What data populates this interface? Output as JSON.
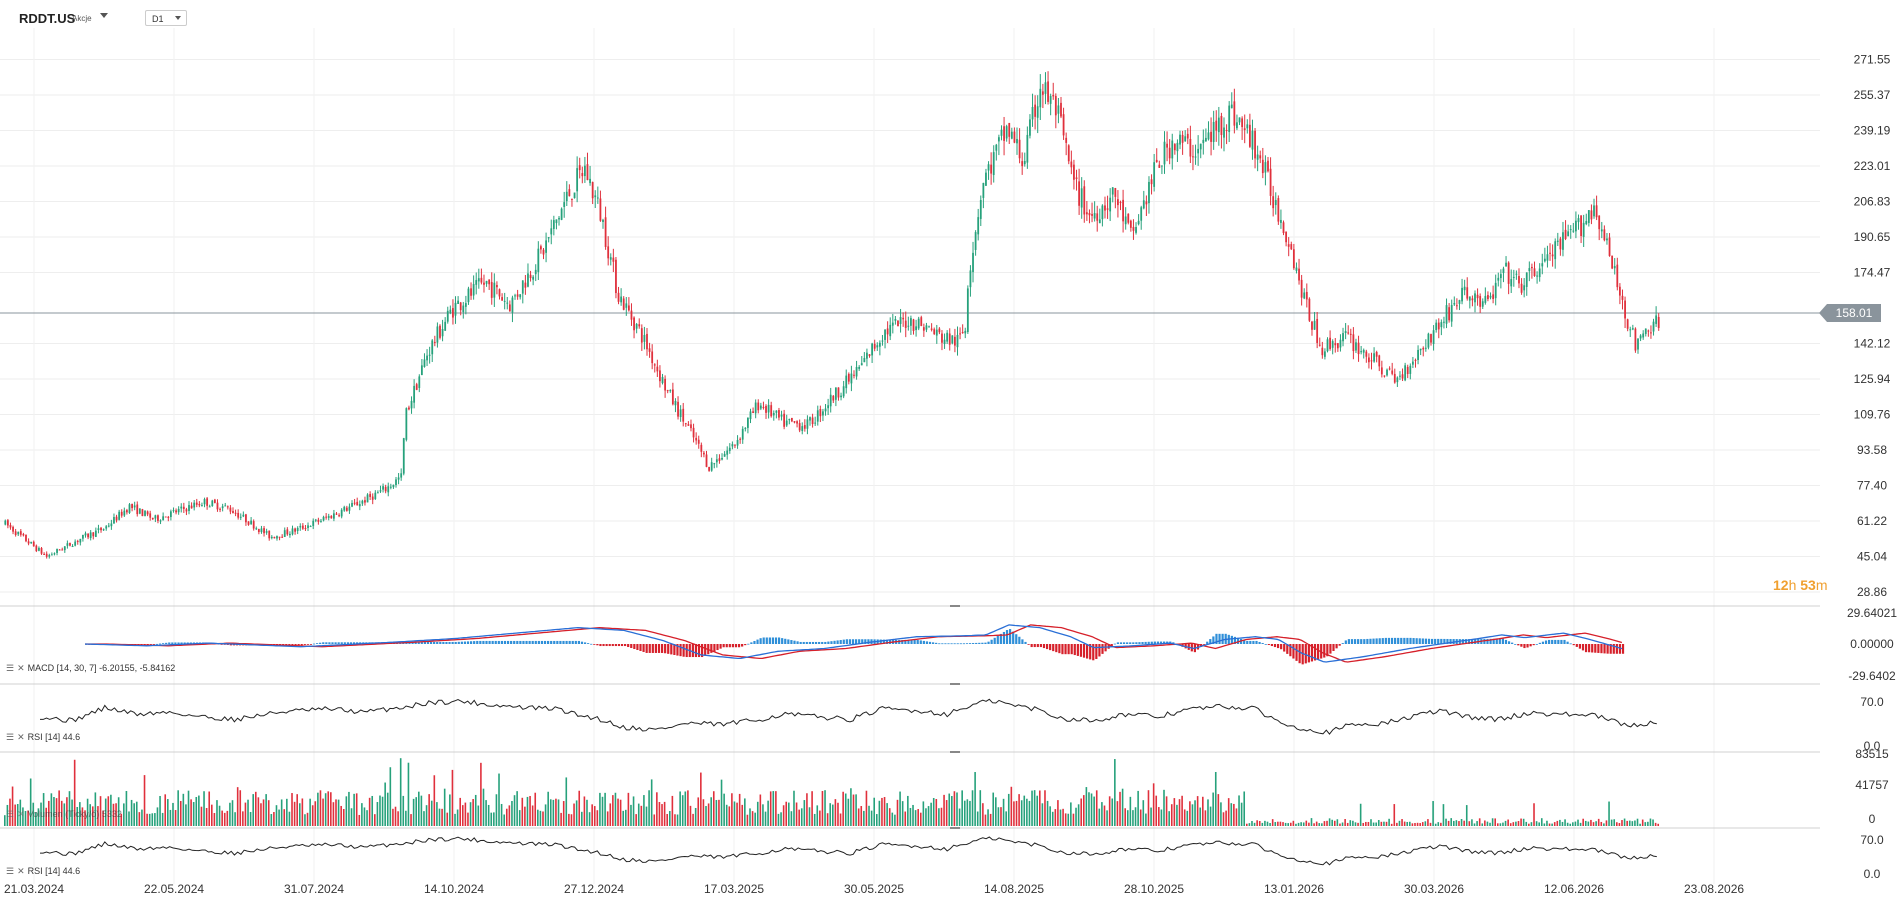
{
  "header": {
    "symbol": "RDDT.US",
    "asset_class": "Akcje",
    "timeframe": "D1"
  },
  "current_price": "158.01",
  "countdown": {
    "hours": "12",
    "h_unit": "h",
    "minutes": "53",
    "m_unit": "m"
  },
  "panes": {
    "macd_label": "MACD [14, 30, 7] -6.20155, -5.84162",
    "rsi_label": "RSI [14] 44.6",
    "volume_label": "Volumen (Ticky/ó) 5332",
    "rsi2_label": "RSI [14] 44.6"
  },
  "colors": {
    "up": "#26a17b",
    "down": "#e0303c",
    "macd_line": "#2a6fd6",
    "signal_line": "#d6202a",
    "hist_up": "#2f8fd8",
    "hist_down": "#d6202a",
    "rsi_line": "#222222",
    "price_line": "#8a949c"
  },
  "chart_data": {
    "type": "candlestick",
    "price_axis_ticks": [
      "271.55",
      "255.37",
      "239.19",
      "223.01",
      "206.83",
      "190.65",
      "174.47",
      "158.01",
      "142.12",
      "125.94",
      "109.76",
      "93.58",
      "77.40",
      "61.22",
      "45.04",
      "28.86"
    ],
    "date_axis_ticks": [
      "21.03.2024",
      "22.05.2024",
      "31.07.2024",
      "14.10.2024",
      "27.12.2024",
      "17.03.2025",
      "30.05.2025",
      "14.08.2025",
      "28.10.2025",
      "13.01.2026",
      "30.03.2026",
      "12.06.2026",
      "23.08.2026"
    ],
    "ylim": [
      28.86,
      285
    ],
    "price_path": [
      [
        0,
        60
      ],
      [
        25,
        45
      ],
      [
        45,
        53
      ],
      [
        60,
        58
      ],
      [
        75,
        68
      ],
      [
        90,
        62
      ],
      [
        105,
        66
      ],
      [
        120,
        70
      ],
      [
        135,
        67
      ],
      [
        145,
        62
      ],
      [
        160,
        54
      ],
      [
        175,
        57
      ],
      [
        195,
        63
      ],
      [
        215,
        70
      ],
      [
        230,
        76
      ],
      [
        240,
        82
      ],
      [
        241,
        108
      ],
      [
        255,
        138
      ],
      [
        270,
        158
      ],
      [
        290,
        170
      ],
      [
        305,
        160
      ],
      [
        325,
        185
      ],
      [
        340,
        210
      ],
      [
        350,
        222
      ],
      [
        360,
        200
      ],
      [
        370,
        165
      ],
      [
        385,
        145
      ],
      [
        400,
        120
      ],
      [
        415,
        100
      ],
      [
        425,
        86
      ],
      [
        440,
        96
      ],
      [
        455,
        115
      ],
      [
        470,
        106
      ],
      [
        485,
        105
      ],
      [
        500,
        118
      ],
      [
        515,
        130
      ],
      [
        530,
        147
      ],
      [
        545,
        153
      ],
      [
        555,
        150
      ],
      [
        565,
        145
      ],
      [
        575,
        143
      ],
      [
        580,
        150
      ],
      [
        581,
        170
      ],
      [
        590,
        215
      ],
      [
        605,
        240
      ],
      [
        615,
        225
      ],
      [
        625,
        260
      ],
      [
        635,
        248
      ],
      [
        645,
        215
      ],
      [
        655,
        200
      ],
      [
        670,
        210
      ],
      [
        680,
        190
      ],
      [
        695,
        222
      ],
      [
        705,
        235
      ],
      [
        720,
        230
      ],
      [
        740,
        248
      ],
      [
        755,
        232
      ],
      [
        765,
        210
      ],
      [
        775,
        190
      ],
      [
        785,
        160
      ],
      [
        795,
        140
      ],
      [
        810,
        145
      ],
      [
        825,
        135
      ],
      [
        840,
        125
      ],
      [
        855,
        140
      ],
      [
        865,
        150
      ],
      [
        880,
        165
      ],
      [
        895,
        160
      ],
      [
        905,
        175
      ],
      [
        915,
        168
      ],
      [
        930,
        180
      ],
      [
        950,
        195
      ],
      [
        960,
        205
      ],
      [
        970,
        178
      ],
      [
        980,
        152
      ],
      [
        985,
        140
      ],
      [
        995,
        152
      ],
      [
        1000,
        150
      ]
    ],
    "macd_path": [
      [
        0,
        0
      ],
      [
        40,
        -2
      ],
      [
        80,
        1
      ],
      [
        140,
        -3
      ],
      [
        200,
        2
      ],
      [
        240,
        6
      ],
      [
        280,
        12
      ],
      [
        320,
        18
      ],
      [
        350,
        15
      ],
      [
        375,
        4
      ],
      [
        400,
        -12
      ],
      [
        425,
        -16
      ],
      [
        450,
        -8
      ],
      [
        480,
        -5
      ],
      [
        510,
        2
      ],
      [
        540,
        8
      ],
      [
        570,
        9
      ],
      [
        585,
        10
      ],
      [
        600,
        21
      ],
      [
        620,
        18
      ],
      [
        640,
        8
      ],
      [
        655,
        -4
      ],
      [
        680,
        -2
      ],
      [
        705,
        1
      ],
      [
        720,
        -5
      ],
      [
        740,
        5
      ],
      [
        760,
        8
      ],
      [
        775,
        5
      ],
      [
        790,
        -10
      ],
      [
        805,
        -20
      ],
      [
        830,
        -14
      ],
      [
        860,
        -5
      ],
      [
        880,
        0
      ],
      [
        905,
        6
      ],
      [
        920,
        10
      ],
      [
        935,
        7
      ],
      [
        945,
        9
      ],
      [
        960,
        12
      ],
      [
        975,
        6
      ],
      [
        1000,
        -6
      ]
    ],
    "macd_axis": [
      "29.64021",
      "0.00000",
      "-29.6402"
    ],
    "rsi_path": [
      [
        0,
        48
      ],
      [
        20,
        42
      ],
      [
        40,
        62
      ],
      [
        60,
        52
      ],
      [
        80,
        55
      ],
      [
        100,
        48
      ],
      [
        120,
        44
      ],
      [
        150,
        56
      ],
      [
        180,
        60
      ],
      [
        200,
        55
      ],
      [
        230,
        65
      ],
      [
        240,
        70
      ],
      [
        260,
        72
      ],
      [
        280,
        66
      ],
      [
        300,
        62
      ],
      [
        320,
        60
      ],
      [
        330,
        52
      ],
      [
        345,
        45
      ],
      [
        360,
        32
      ],
      [
        380,
        28
      ],
      [
        400,
        38
      ],
      [
        420,
        36
      ],
      [
        440,
        42
      ],
      [
        460,
        52
      ],
      [
        480,
        48
      ],
      [
        500,
        44
      ],
      [
        520,
        60
      ],
      [
        540,
        58
      ],
      [
        560,
        52
      ],
      [
        580,
        70
      ],
      [
        590,
        72
      ],
      [
        600,
        66
      ],
      [
        615,
        60
      ],
      [
        630,
        46
      ],
      [
        650,
        42
      ],
      [
        670,
        52
      ],
      [
        690,
        48
      ],
      [
        710,
        60
      ],
      [
        730,
        64
      ],
      [
        750,
        60
      ],
      [
        765,
        40
      ],
      [
        780,
        30
      ],
      [
        795,
        24
      ],
      [
        810,
        36
      ],
      [
        830,
        38
      ],
      [
        850,
        50
      ],
      [
        865,
        58
      ],
      [
        880,
        48
      ],
      [
        900,
        44
      ],
      [
        920,
        54
      ],
      [
        940,
        52
      ],
      [
        960,
        50
      ],
      [
        980,
        34
      ],
      [
        1000,
        40
      ]
    ],
    "rsi_axis": [
      "70.0",
      "0.0"
    ],
    "volume_axis": [
      "83515",
      "41757",
      "0"
    ],
    "rsi2_axis": [
      "70.0",
      "0.0"
    ]
  }
}
